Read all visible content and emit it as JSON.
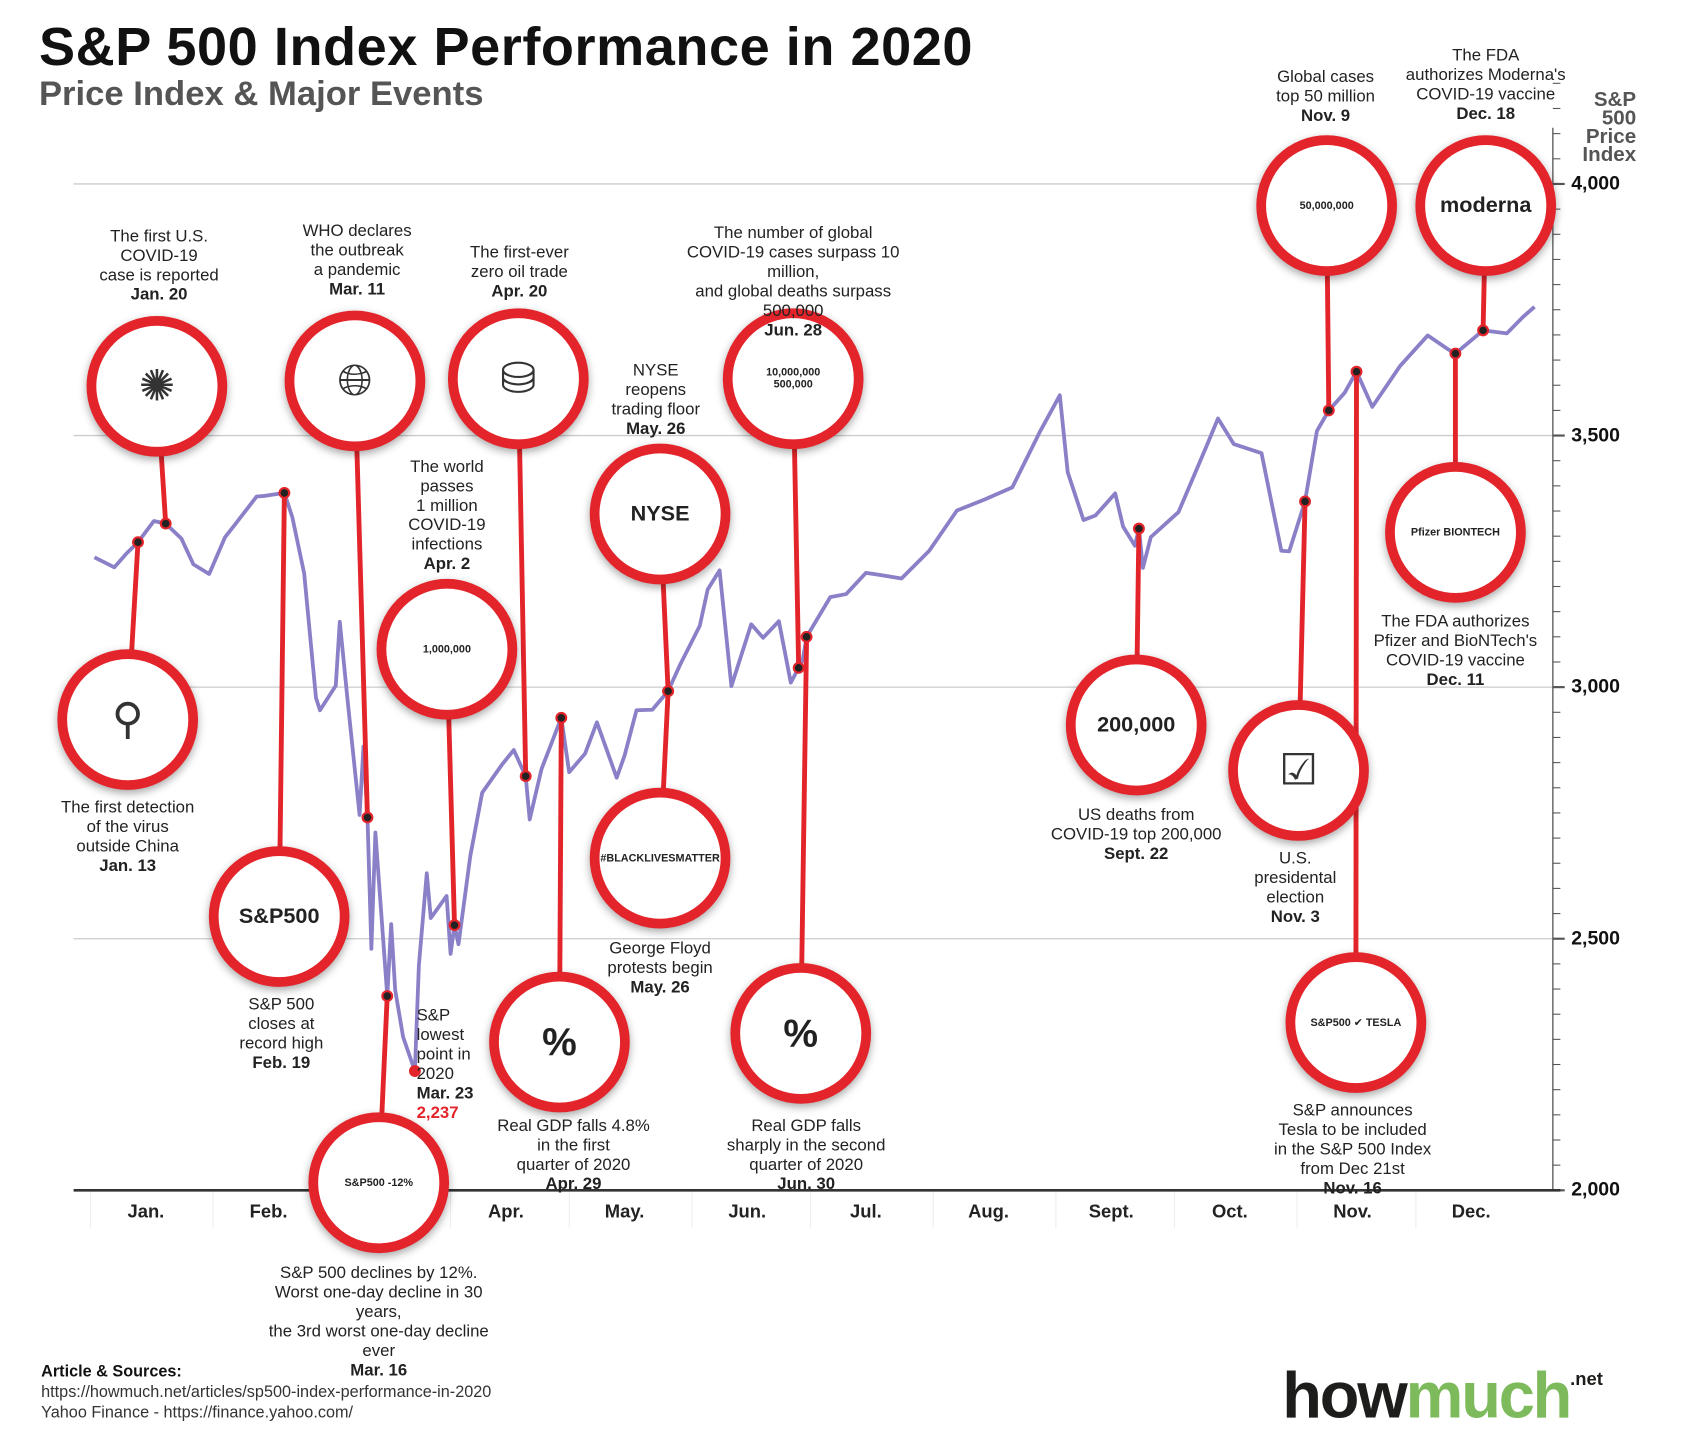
{
  "header": {
    "title": "S&P 500 Index Performance in 2020",
    "subtitle": "Price Index & Major Events"
  },
  "colors": {
    "line": "#8a80c8",
    "accent": "#e3252b",
    "logo_green": "#7dba5b"
  },
  "chart_data": {
    "type": "line",
    "title": "S&P 500 Index Performance in 2020",
    "ylabel": "S&P 500 Price Index",
    "ylim": [
      2000,
      4000
    ],
    "yticks": [
      "2,000",
      "2,500",
      "3,000",
      "3,500",
      "4,000"
    ],
    "ytick_values": [
      2000,
      2500,
      3000,
      3500,
      4000
    ],
    "months": [
      "Jan.",
      "Feb.",
      "Mar.",
      "Apr.",
      "May.",
      "Jun.",
      "Jul.",
      "Aug.",
      "Sept.",
      "Oct.",
      "Nov.",
      "Dec."
    ],
    "grid": true,
    "series": [
      {
        "name": "S&P 500",
        "points": [
          [
            "2020-01-02",
            3258
          ],
          [
            "2020-01-07",
            3238
          ],
          [
            "2020-01-10",
            3265
          ],
          [
            "2020-01-13",
            3288
          ],
          [
            "2020-01-17",
            3330
          ],
          [
            "2020-01-20",
            3325
          ],
          [
            "2020-01-24",
            3295
          ],
          [
            "2020-01-27",
            3244
          ],
          [
            "2020-01-31",
            3225
          ],
          [
            "2020-02-04",
            3298
          ],
          [
            "2020-02-07",
            3328
          ],
          [
            "2020-02-12",
            3379
          ],
          [
            "2020-02-14",
            3380
          ],
          [
            "2020-02-19",
            3386
          ],
          [
            "2020-02-21",
            3338
          ],
          [
            "2020-02-24",
            3226
          ],
          [
            "2020-02-27",
            2979
          ],
          [
            "2020-02-28",
            2954
          ],
          [
            "2020-03-03",
            3003
          ],
          [
            "2020-03-04",
            3130
          ],
          [
            "2020-03-06",
            2972
          ],
          [
            "2020-03-09",
            2746
          ],
          [
            "2020-03-10",
            2882
          ],
          [
            "2020-03-11",
            2741
          ],
          [
            "2020-03-12",
            2480
          ],
          [
            "2020-03-13",
            2711
          ],
          [
            "2020-03-16",
            2386
          ],
          [
            "2020-03-17",
            2529
          ],
          [
            "2020-03-18",
            2398
          ],
          [
            "2020-03-20",
            2305
          ],
          [
            "2020-03-23",
            2237
          ],
          [
            "2020-03-24",
            2447
          ],
          [
            "2020-03-26",
            2630
          ],
          [
            "2020-03-27",
            2541
          ],
          [
            "2020-03-31",
            2585
          ],
          [
            "2020-04-01",
            2470
          ],
          [
            "2020-04-02",
            2527
          ],
          [
            "2020-04-03",
            2489
          ],
          [
            "2020-04-06",
            2664
          ],
          [
            "2020-04-09",
            2790
          ],
          [
            "2020-04-14",
            2846
          ],
          [
            "2020-04-17",
            2875
          ],
          [
            "2020-04-20",
            2823
          ],
          [
            "2020-04-21",
            2737
          ],
          [
            "2020-04-24",
            2837
          ],
          [
            "2020-04-29",
            2939
          ],
          [
            "2020-05-01",
            2831
          ],
          [
            "2020-05-05",
            2868
          ],
          [
            "2020-05-08",
            2930
          ],
          [
            "2020-05-13",
            2820
          ],
          [
            "2020-05-15",
            2864
          ],
          [
            "2020-05-18",
            2954
          ],
          [
            "2020-05-22",
            2955
          ],
          [
            "2020-05-26",
            2992
          ],
          [
            "2020-05-29",
            3044
          ],
          [
            "2020-06-03",
            3122
          ],
          [
            "2020-06-05",
            3194
          ],
          [
            "2020-06-08",
            3232
          ],
          [
            "2020-06-11",
            3002
          ],
          [
            "2020-06-16",
            3125
          ],
          [
            "2020-06-19",
            3098
          ],
          [
            "2020-06-23",
            3131
          ],
          [
            "2020-06-26",
            3009
          ],
          [
            "2020-06-29",
            3053
          ],
          [
            "2020-06-30",
            3100
          ],
          [
            "2020-07-06",
            3179
          ],
          [
            "2020-07-10",
            3185
          ],
          [
            "2020-07-15",
            3227
          ],
          [
            "2020-07-17",
            3225
          ],
          [
            "2020-07-24",
            3216
          ],
          [
            "2020-07-31",
            3271
          ],
          [
            "2020-08-07",
            3351
          ],
          [
            "2020-08-14",
            3373
          ],
          [
            "2020-08-21",
            3397
          ],
          [
            "2020-08-28",
            3508
          ],
          [
            "2020-09-02",
            3580
          ],
          [
            "2020-09-04",
            3427
          ],
          [
            "2020-09-08",
            3332
          ],
          [
            "2020-09-11",
            3341
          ],
          [
            "2020-09-16",
            3385
          ],
          [
            "2020-09-18",
            3319
          ],
          [
            "2020-09-21",
            3281
          ],
          [
            "2020-09-22",
            3315
          ],
          [
            "2020-09-23",
            3237
          ],
          [
            "2020-09-25",
            3298
          ],
          [
            "2020-10-02",
            3348
          ],
          [
            "2020-10-09",
            3477
          ],
          [
            "2020-10-12",
            3534
          ],
          [
            "2020-10-16",
            3483
          ],
          [
            "2020-10-23",
            3465
          ],
          [
            "2020-10-28",
            3271
          ],
          [
            "2020-10-30",
            3270
          ],
          [
            "2020-11-03",
            3369
          ],
          [
            "2020-11-06",
            3509
          ],
          [
            "2020-11-09",
            3550
          ],
          [
            "2020-11-13",
            3585
          ],
          [
            "2020-11-16",
            3627
          ],
          [
            "2020-11-20",
            3557
          ],
          [
            "2020-11-27",
            3638
          ],
          [
            "2020-12-04",
            3699
          ],
          [
            "2020-12-09",
            3672
          ],
          [
            "2020-12-11",
            3663
          ],
          [
            "2020-12-18",
            3709
          ],
          [
            "2020-12-24",
            3703
          ],
          [
            "2020-12-28",
            3735
          ],
          [
            "2020-12-31",
            3756
          ]
        ]
      }
    ],
    "annotations": [
      {
        "date": "Jan. 20",
        "text": "The first U.S.\nCOVID-19\ncase is reported",
        "icon": "us-map-virus-icon"
      },
      {
        "date": "Jan. 13",
        "text": "The first detection\nof the virus\noutside China",
        "icon": "china-map-icon"
      },
      {
        "date": "Feb. 19",
        "text": "S&P 500\ncloses at\nrecord high",
        "icon": "sp500-up-arrow-icon",
        "icon_text": "S&P500"
      },
      {
        "date": "Mar. 11",
        "text": "WHO declares\nthe outbreak\na pandemic",
        "icon": "globe-virus-icon"
      },
      {
        "date": "Mar. 16",
        "text": "S&P 500 declines by 12%.\nWorst one-day decline in 30 years,\nthe 3rd worst one-day decline ever",
        "icon": "sp500-decline-icon",
        "icon_text": "S&P500 -12%"
      },
      {
        "date": "Mar. 23",
        "text": "S&P\nlowest\npoint in\n2020",
        "value": "2,237"
      },
      {
        "date": "Apr. 2",
        "text": "The world\npasses\n1 million\nCOVID-19\ninfections",
        "icon": "virus-icon",
        "icon_text": "1,000,000"
      },
      {
        "date": "Apr. 20",
        "text": "The first-ever\nzero oil trade",
        "icon": "oil-barrel-icon"
      },
      {
        "date": "Apr. 29",
        "text": "Real GDP falls 4.8%\nin the first\nquarter of 2020",
        "icon": "percent-down-icon",
        "icon_text": "%"
      },
      {
        "date": "May. 26",
        "text": "NYSE\nreopens\ntrading floor",
        "icon": "nyse-icon",
        "icon_text": "NYSE"
      },
      {
        "date": "May. 26",
        "text": "George Floyd\nprotests begin",
        "icon": "fist-icon",
        "icon_text": "#BLACKLIVESMATTER"
      },
      {
        "date": "Jun. 28",
        "text": "The number of global\nCOVID-19 cases surpass 10 million,\nand global deaths surpass 500,000",
        "icon": "virus-icon",
        "icon_text": "10,000,000\n500,000"
      },
      {
        "date": "Jun. 30",
        "text": "Real GDP falls\nsharply in the second\nquarter of 2020",
        "icon": "percent-down-icon",
        "icon_text": "%"
      },
      {
        "date": "Sept. 22",
        "text": "US deaths from\nCOVID-19 top 200,000",
        "icon": "us-flag-icon",
        "icon_text": "200,000"
      },
      {
        "date": "Nov. 3",
        "text": "U.S.\npresidental\nelection",
        "icon": "ballot-icon"
      },
      {
        "date": "Nov. 9",
        "text": "Global cases\ntop 50 million",
        "icon": "virus-icon",
        "icon_text": "50,000,000"
      },
      {
        "date": "Nov. 16",
        "text": "S&P announces\nTesla to be included\nin the S&P 500 Index\nfrom Dec 21st",
        "icon": "tesla-icon",
        "icon_text": "S&P500 ✔ TESLA"
      },
      {
        "date": "Dec. 11",
        "text": "The FDA authorizes\nPfizer and BioNTech's\nCOVID-19 vaccine",
        "icon": "pfizer-vaccine-icon",
        "icon_text": "Pfizer BIONTECH"
      },
      {
        "date": "Dec. 18",
        "text": "The FDA\nauthorizes Moderna's\nCOVID-19 vaccine",
        "icon": "moderna-vaccine-icon",
        "icon_text": "moderna"
      }
    ]
  },
  "axis": {
    "title": "S&P\n500\nPrice\nIndex"
  },
  "footer": {
    "sources_label": "Article & Sources:",
    "source_1": "https://howmuch.net/articles/sp500-index-performance-in-2020",
    "source_2": "Yahoo Finance - https://finance.yahoo.com/",
    "logo_how": "how",
    "logo_much": "much",
    "logo_net": ".net"
  }
}
